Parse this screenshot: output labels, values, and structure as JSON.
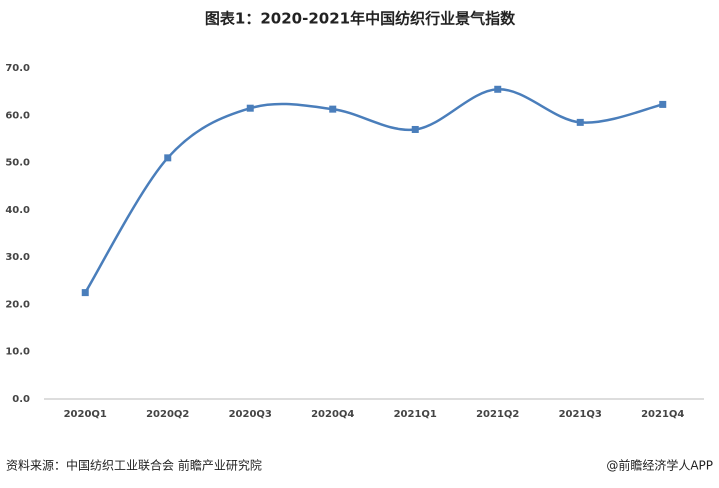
{
  "chart_data": {
    "type": "line",
    "title": "图表1：2020-2021年中国纺织行业景气指数",
    "categories": [
      "2020Q1",
      "2020Q2",
      "2020Q3",
      "2020Q4",
      "2021Q1",
      "2021Q2",
      "2021Q3",
      "2021Q4"
    ],
    "values": [
      22.5,
      51,
      61.5,
      61.3,
      57,
      65.5,
      58.5,
      62.3
    ],
    "color": "#4a7ebb",
    "ylim": [
      0,
      70
    ],
    "yticks": [
      {
        "value": 0,
        "label": "0.0"
      },
      {
        "value": 10,
        "label": "10.0"
      },
      {
        "value": 20,
        "label": "20.0"
      },
      {
        "value": 30,
        "label": "30.0"
      },
      {
        "value": 40,
        "label": "40.0"
      },
      {
        "value": 50,
        "label": "50.0"
      },
      {
        "value": 60,
        "label": "60.0"
      },
      {
        "value": 70,
        "label": "70.0"
      }
    ],
    "grid": false,
    "source": "资料来源：中国纺织工业联合会 前瞻产业研究院",
    "credit": "@前瞻经济学人APP"
  }
}
